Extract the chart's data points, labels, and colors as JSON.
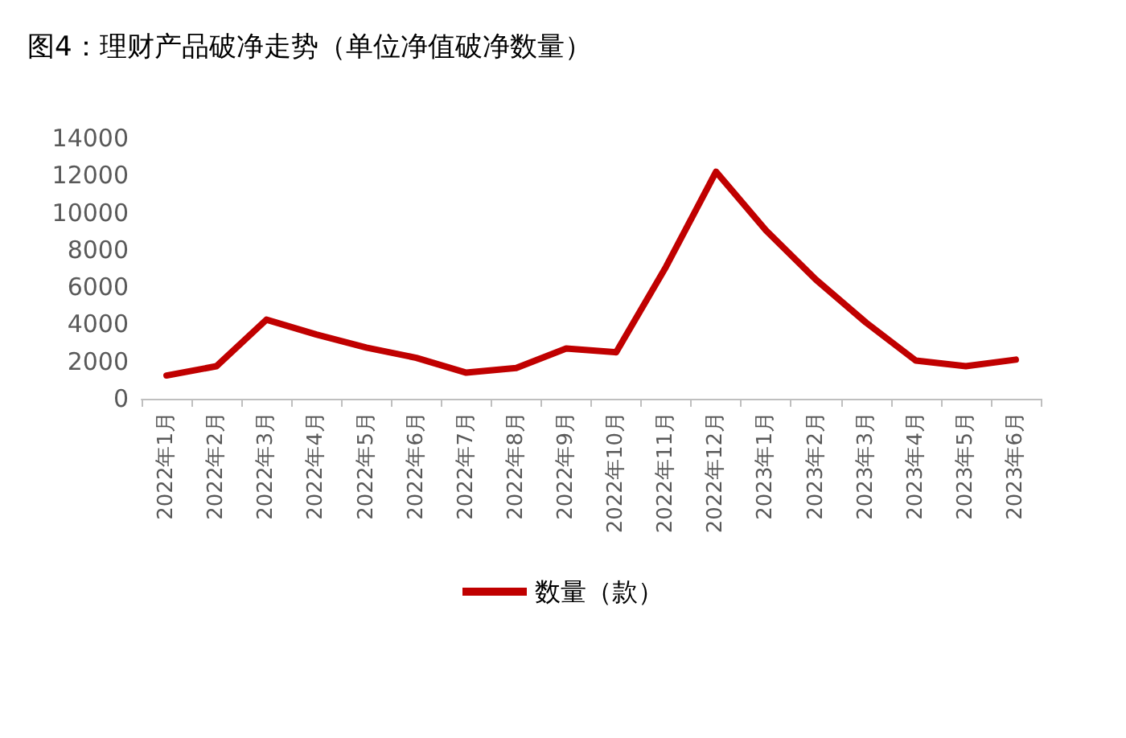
{
  "chart_data": {
    "type": "line",
    "title": "图4：理财产品破净走势（单位净值破净数量）",
    "categories": [
      "2022年1月",
      "2022年2月",
      "2022年3月",
      "2022年4月",
      "2022年5月",
      "2022年6月",
      "2022年7月",
      "2022年8月",
      "2022年9月",
      "2022年10月",
      "2022年11月",
      "2022年12月",
      "2023年1月",
      "2023年2月",
      "2023年3月",
      "2023年4月",
      "2023年5月",
      "2023年6月"
    ],
    "series": [
      {
        "name": "数量（款）",
        "color": "#c00000",
        "values": [
          1250,
          1750,
          4250,
          3450,
          2750,
          2200,
          1400,
          1650,
          2700,
          2500,
          7100,
          12200,
          9050,
          6400,
          4100,
          2050,
          1750,
          2100
        ]
      }
    ],
    "ylim": [
      0,
      14000
    ],
    "yticks": [
      0,
      2000,
      4000,
      6000,
      8000,
      10000,
      12000,
      14000
    ],
    "grid": false,
    "legend": "bottom",
    "marker": "none",
    "line_style": "solid"
  }
}
